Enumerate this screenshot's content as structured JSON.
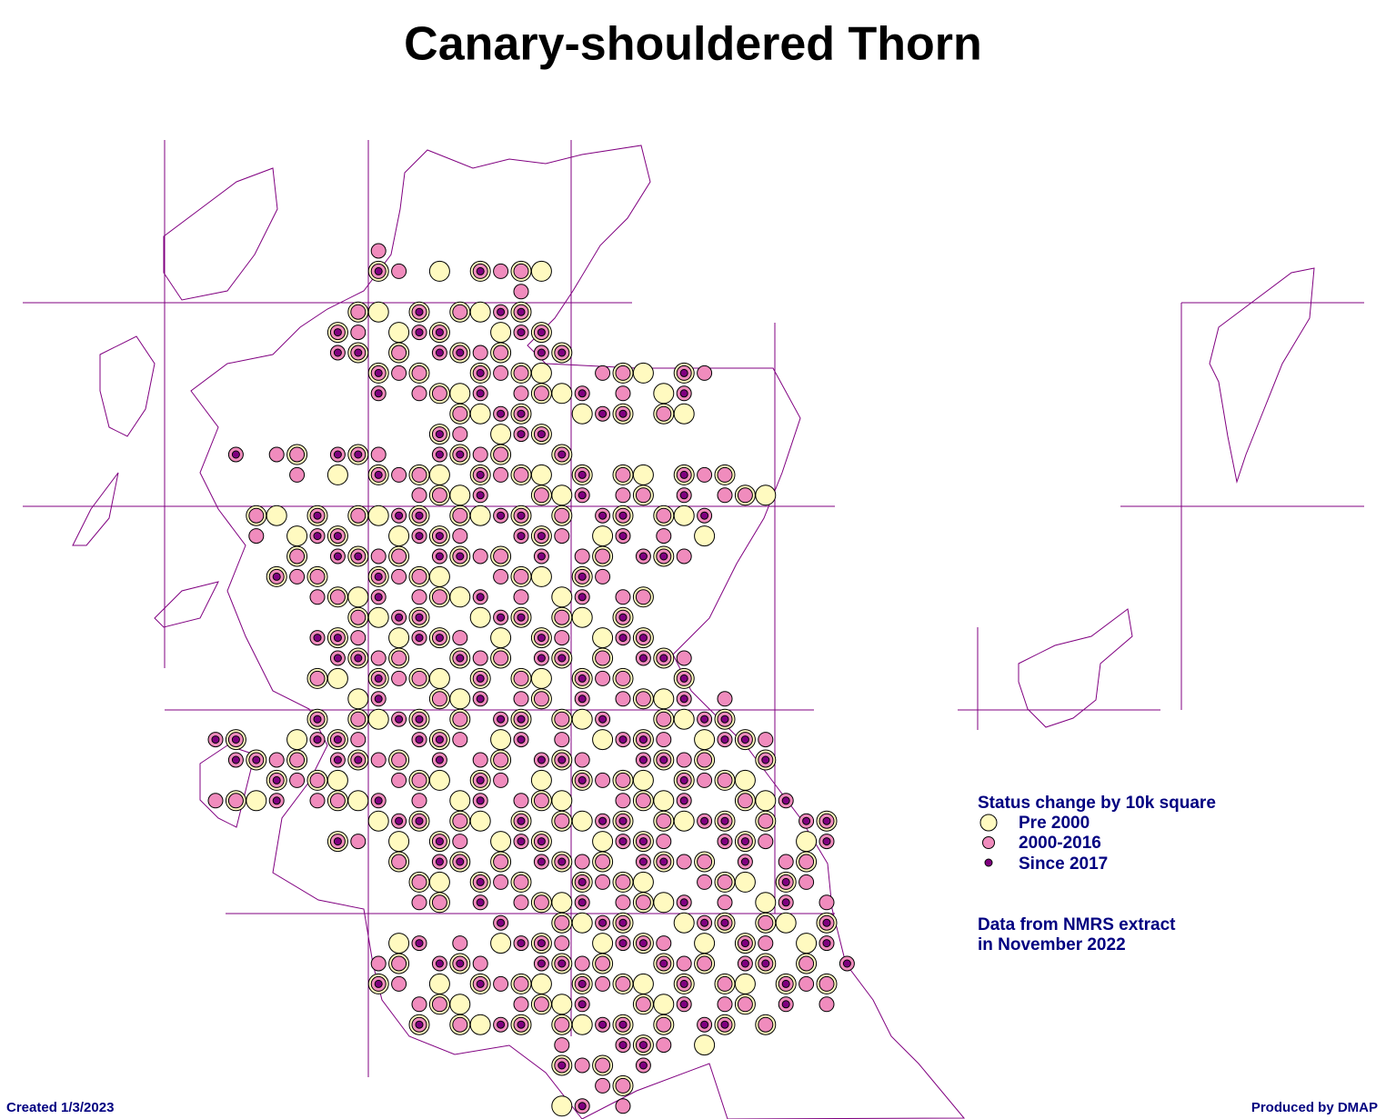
{
  "title": "Canary-shouldered Thorn",
  "legend": {
    "title": "Status change by 10k square",
    "items": [
      "Pre 2000",
      "2000-2016",
      "Since 2017"
    ]
  },
  "note": [
    "Data from NMRS extract",
    "in November 2022"
  ],
  "footer": {
    "created": "Created 1/3/2023",
    "produced": "Produced by DMAP"
  }
}
